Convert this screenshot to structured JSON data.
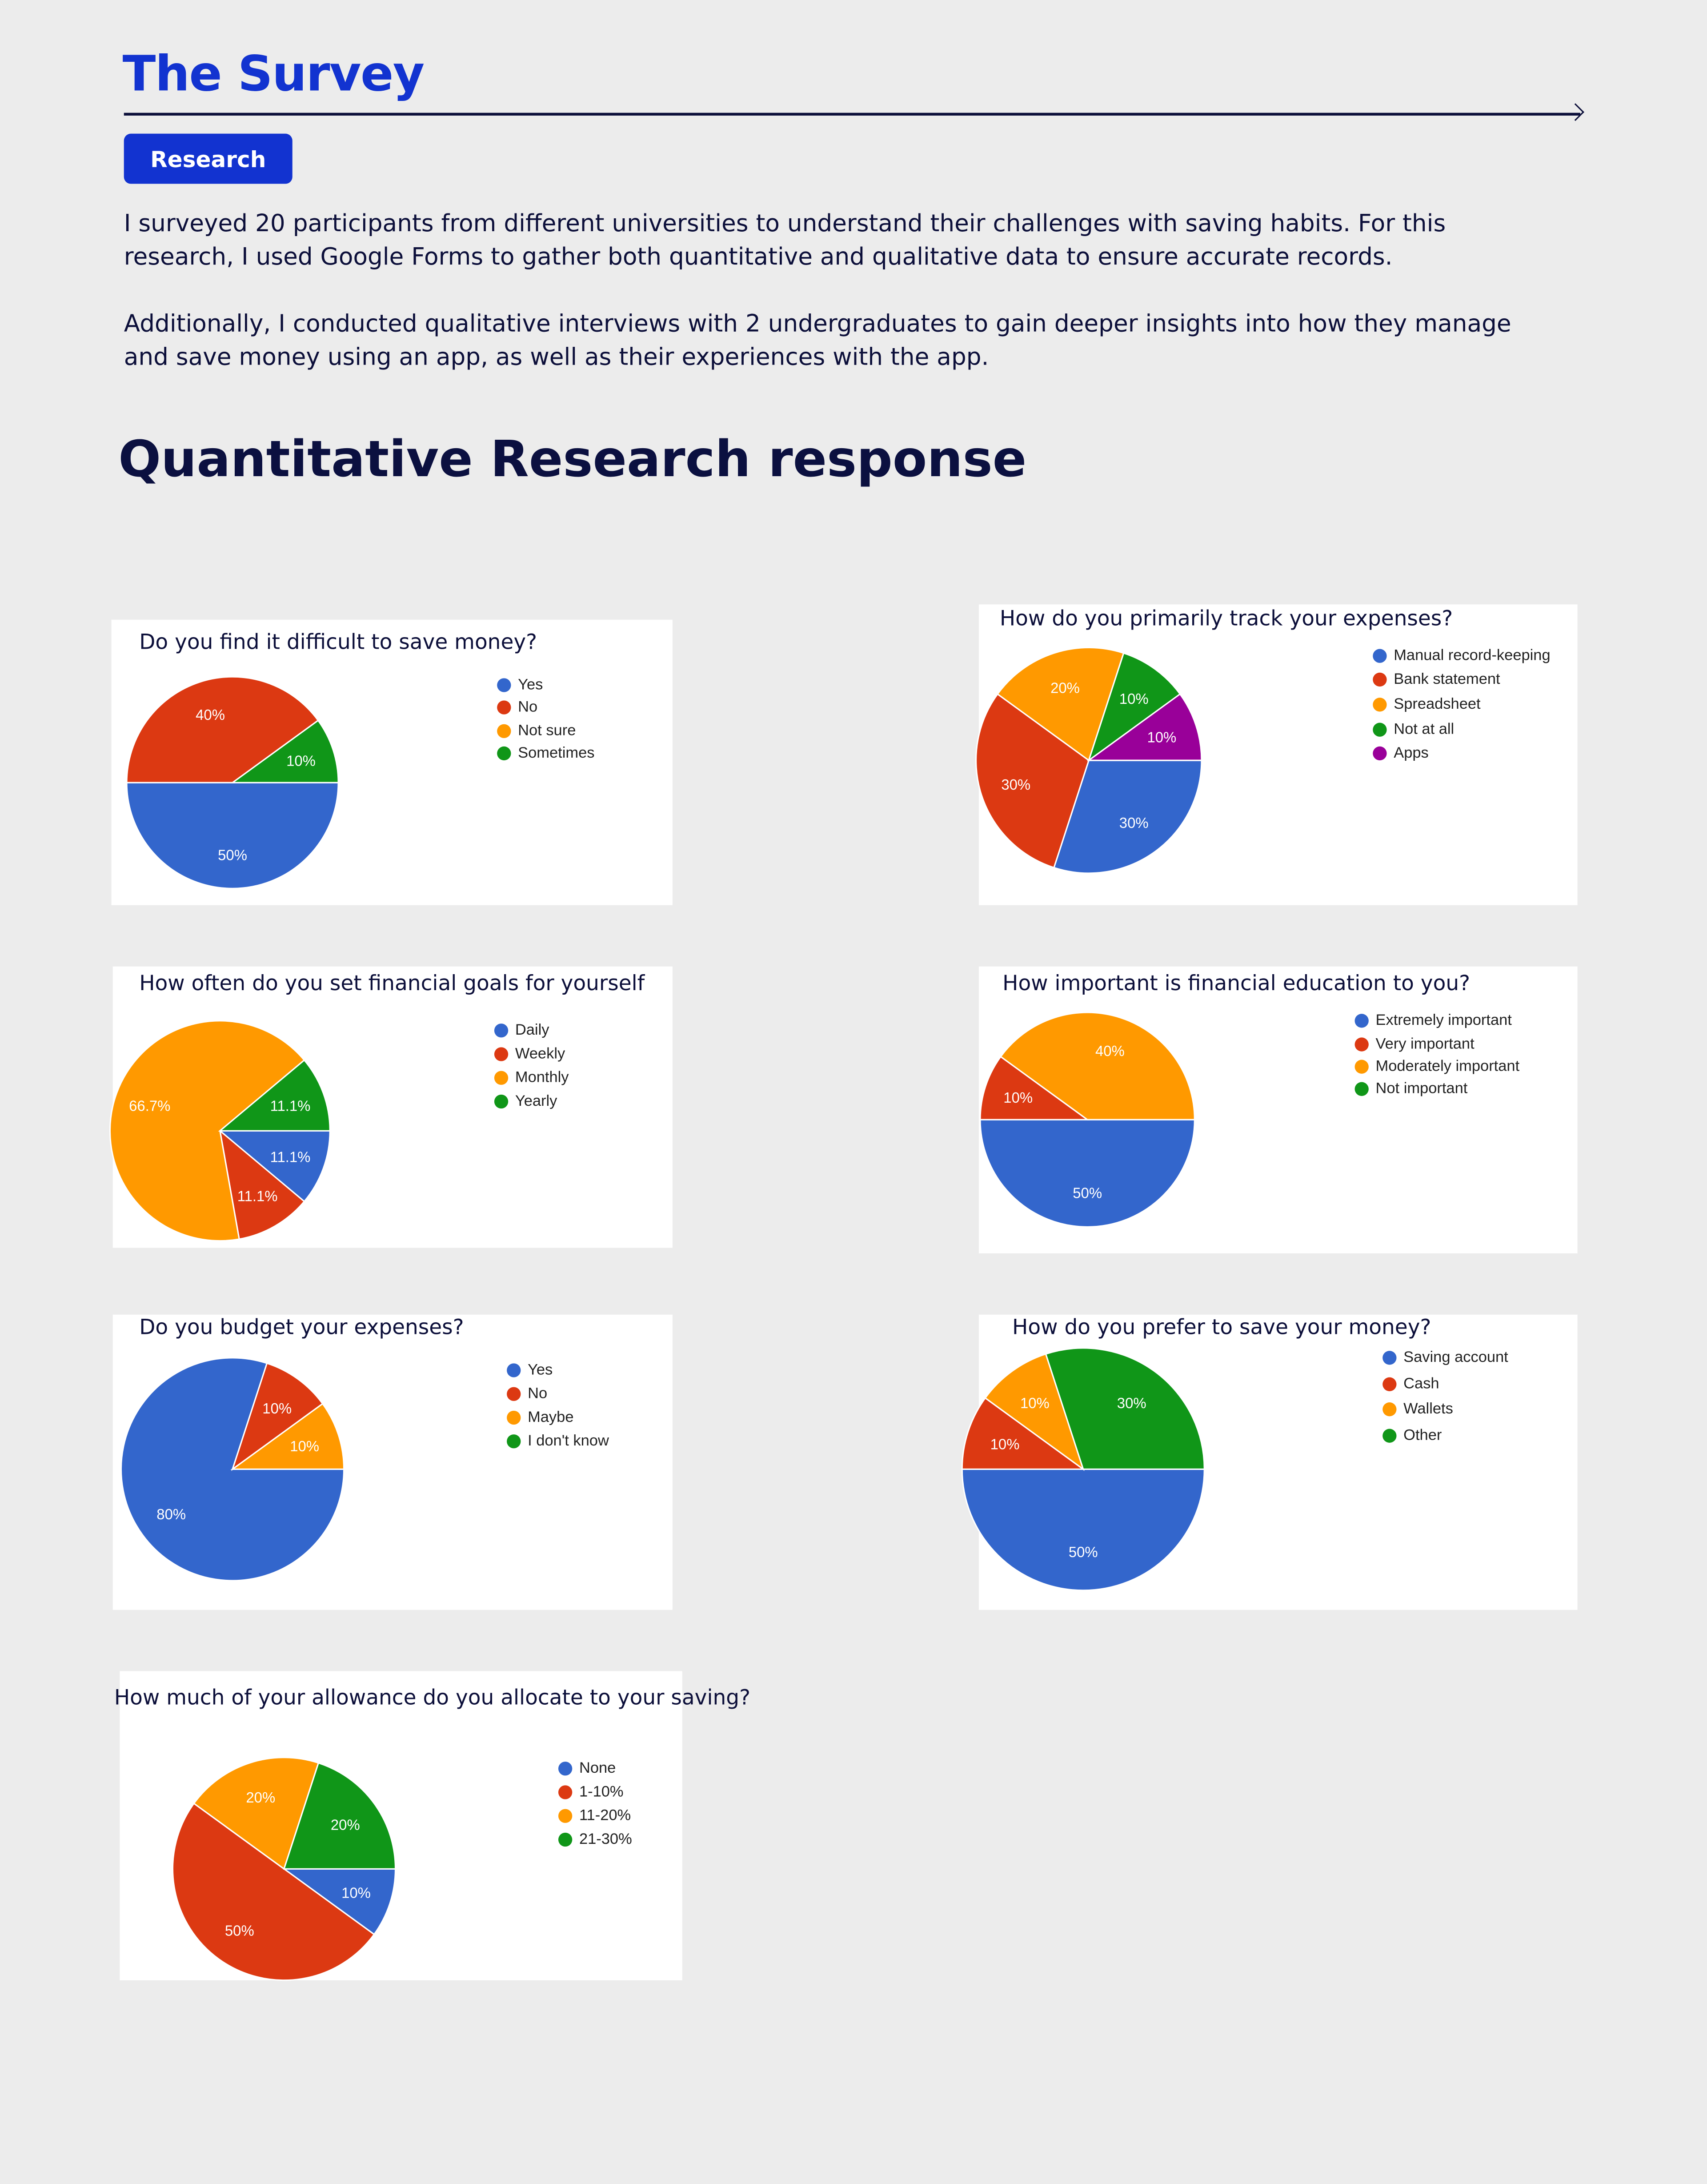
{
  "header": {
    "title": "The Survey",
    "tag_button": "Research",
    "paragraphs": [
      "I surveyed 20 participants from different universities to understand their challenges with saving habits. For this research, I used Google Forms to gather both quantitative and qualitative data to ensure accurate records.",
      "Additionally, I conducted qualitative interviews with 2 undergraduates to gain deeper insights into how they manage and save money using an app, as well as their experiences with the app."
    ]
  },
  "section_title": "Quantitative Research response",
  "colors": {
    "brand": "#1233d0",
    "text": "#0c0f3a",
    "background": "#ececec"
  },
  "chart_data": [
    {
      "type": "pie",
      "title": "Do you find it difficult to save money?",
      "categories": [
        "Yes",
        "No",
        "Not sure",
        "Sometimes"
      ],
      "values": [
        50,
        40,
        0,
        10
      ],
      "value_labels": [
        "50%",
        "40%",
        "",
        "10%"
      ],
      "colors": [
        "#3366cc",
        "#dc3912",
        "#ff9900",
        "#109618"
      ],
      "legend": "right"
    },
    {
      "type": "pie",
      "title": "How do you primarily track your expenses?",
      "categories": [
        "Manual record-keeping",
        "Bank statement",
        "Spreadsheet",
        "Not at all",
        "Apps"
      ],
      "values": [
        30,
        30,
        20,
        10,
        10
      ],
      "value_labels": [
        "30%",
        "30%",
        "20%",
        "10%",
        "10%"
      ],
      "colors": [
        "#3366cc",
        "#dc3912",
        "#ff9900",
        "#109618",
        "#990099"
      ],
      "legend": "right"
    },
    {
      "type": "pie",
      "title": "How often do you set financial goals for yourself",
      "categories": [
        "Daily",
        "Weekly",
        "Monthly",
        "Yearly"
      ],
      "values": [
        11.1,
        11.1,
        66.7,
        11.1
      ],
      "value_labels": [
        "11.1%",
        "11.1%",
        "66.7%",
        "11.1%"
      ],
      "colors": [
        "#3366cc",
        "#dc3912",
        "#ff9900",
        "#109618"
      ],
      "legend": "right"
    },
    {
      "type": "pie",
      "title": "How important is financial education to you?",
      "categories": [
        "Extremely important",
        "Very important",
        "Moderately important",
        "Not important"
      ],
      "values": [
        50,
        10,
        40,
        0
      ],
      "value_labels": [
        "50%",
        "10%",
        "40%",
        ""
      ],
      "colors": [
        "#3366cc",
        "#dc3912",
        "#ff9900",
        "#109618"
      ],
      "legend": "right"
    },
    {
      "type": "pie",
      "title": "Do you budget your expenses?",
      "categories": [
        "Yes",
        "No",
        "Maybe",
        "I don't know"
      ],
      "values": [
        80,
        10,
        10,
        0
      ],
      "value_labels": [
        "80%",
        "10%",
        "10%",
        ""
      ],
      "colors": [
        "#3366cc",
        "#dc3912",
        "#ff9900",
        "#109618"
      ],
      "legend": "right"
    },
    {
      "type": "pie",
      "title": "How do you prefer to save your money?",
      "categories": [
        "Saving account",
        "Cash",
        "Wallets",
        "Other"
      ],
      "values": [
        50,
        10,
        10,
        30
      ],
      "value_labels": [
        "50%",
        "10%",
        "10%",
        "30%"
      ],
      "colors": [
        "#3366cc",
        "#dc3912",
        "#ff9900",
        "#109618"
      ],
      "legend": "right"
    },
    {
      "type": "pie",
      "title": "How much of your allowance do you allocate to your saving?",
      "categories": [
        "None",
        "1-10%",
        "11-20%",
        "21-30%"
      ],
      "values": [
        10,
        50,
        20,
        20
      ],
      "value_labels": [
        "10%",
        "50%",
        "20%",
        "20%"
      ],
      "colors": [
        "#3366cc",
        "#dc3912",
        "#ff9900",
        "#109618"
      ],
      "legend": "right"
    }
  ]
}
